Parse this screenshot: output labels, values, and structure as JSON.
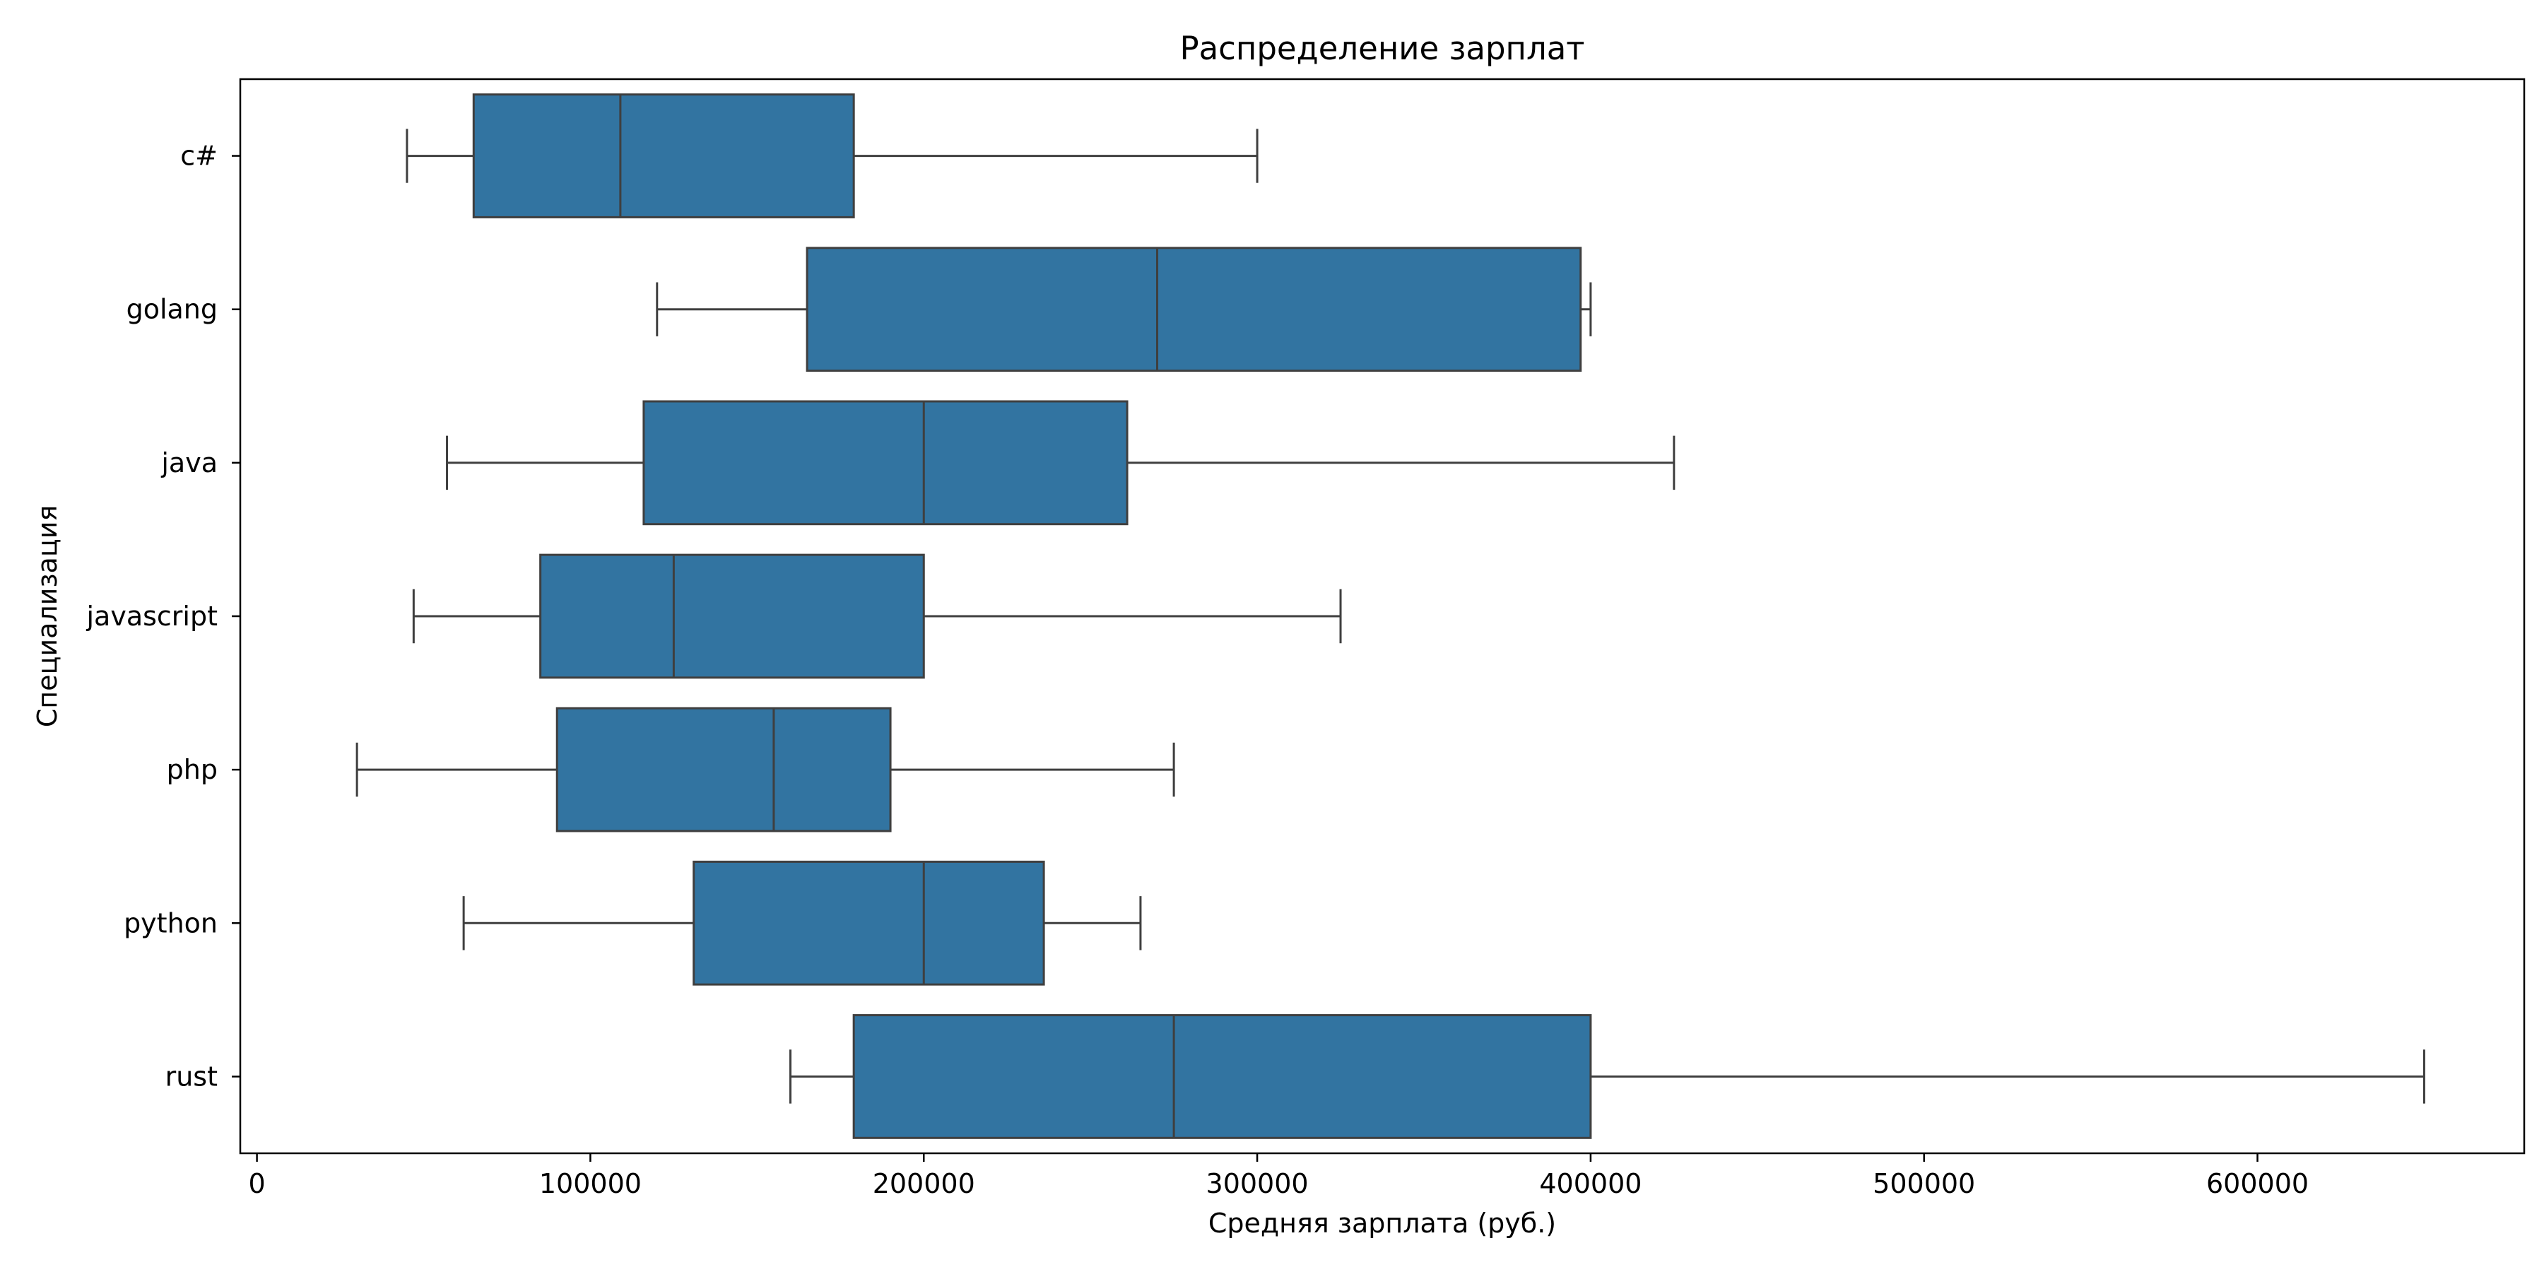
{
  "chart_data": {
    "type": "boxplot",
    "orientation": "horizontal",
    "title": "Распределение зарплат",
    "xlabel": "Средняя зарплата (руб.)",
    "ylabel": "Специализация",
    "xlim": [
      -5000,
      680000
    ],
    "x_ticks": [
      0,
      100000,
      200000,
      300000,
      400000,
      500000,
      600000
    ],
    "x_tick_labels": [
      "0",
      "100000",
      "200000",
      "300000",
      "400000",
      "500000",
      "600000"
    ],
    "grid": false,
    "legend": null,
    "box_color": "#3274a1",
    "line_color": "#3f3f3f",
    "categories": [
      "c#",
      "golang",
      "java",
      "javascript",
      "php",
      "python",
      "rust"
    ],
    "boxes": [
      {
        "label": "c#",
        "whisker_low": 45000,
        "q1": 65000,
        "median": 109000,
        "q3": 179000,
        "whisker_high": 300000
      },
      {
        "label": "golang",
        "whisker_low": 120000,
        "q1": 165000,
        "median": 270000,
        "q3": 397000,
        "whisker_high": 400000
      },
      {
        "label": "java",
        "whisker_low": 57000,
        "q1": 116000,
        "median": 200000,
        "q3": 261000,
        "whisker_high": 425000
      },
      {
        "label": "javascript",
        "whisker_low": 47000,
        "q1": 85000,
        "median": 125000,
        "q3": 200000,
        "whisker_high": 325000
      },
      {
        "label": "php",
        "whisker_low": 30000,
        "q1": 90000,
        "median": 155000,
        "q3": 190000,
        "whisker_high": 275000
      },
      {
        "label": "python",
        "whisker_low": 62000,
        "q1": 131000,
        "median": 200000,
        "q3": 236000,
        "whisker_high": 265000
      },
      {
        "label": "rust",
        "whisker_low": 160000,
        "q1": 179000,
        "median": 275000,
        "q3": 400000,
        "whisker_high": 650000
      }
    ]
  }
}
